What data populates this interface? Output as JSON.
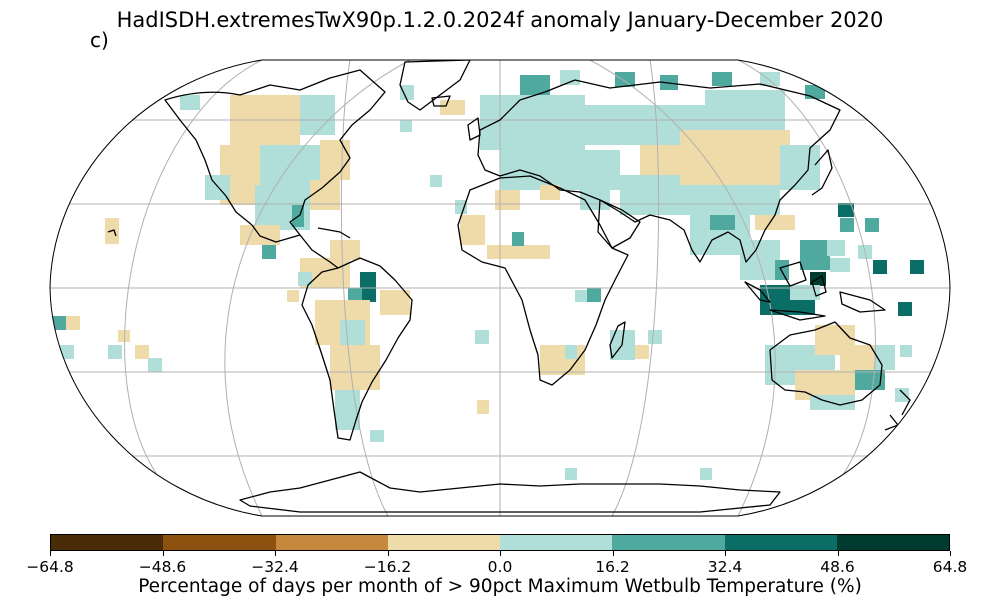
{
  "title": "HadISDH.extremesTwX90p.1.2.0.2024f anomaly January-December 2020",
  "panel_label": "c)",
  "colorbar": {
    "label": "Percentage of days per month of > 90pct Maximum Wetbulb Temperature (%)",
    "ticks": [
      "−64.8",
      "−48.6",
      "−32.4",
      "−16.2",
      "0.0",
      "16.2",
      "32.4",
      "48.6",
      "64.8"
    ],
    "colors": [
      "#4a2c09",
      "#8d520f",
      "#c6883c",
      "#eedba9",
      "#afdfd8",
      "#4fa99e",
      "#0a6e66",
      "#003b30"
    ]
  },
  "colors": {
    "land_outline": "#000000",
    "graticule": "#b0b0b0",
    "missing": "#ffffff"
  }
}
